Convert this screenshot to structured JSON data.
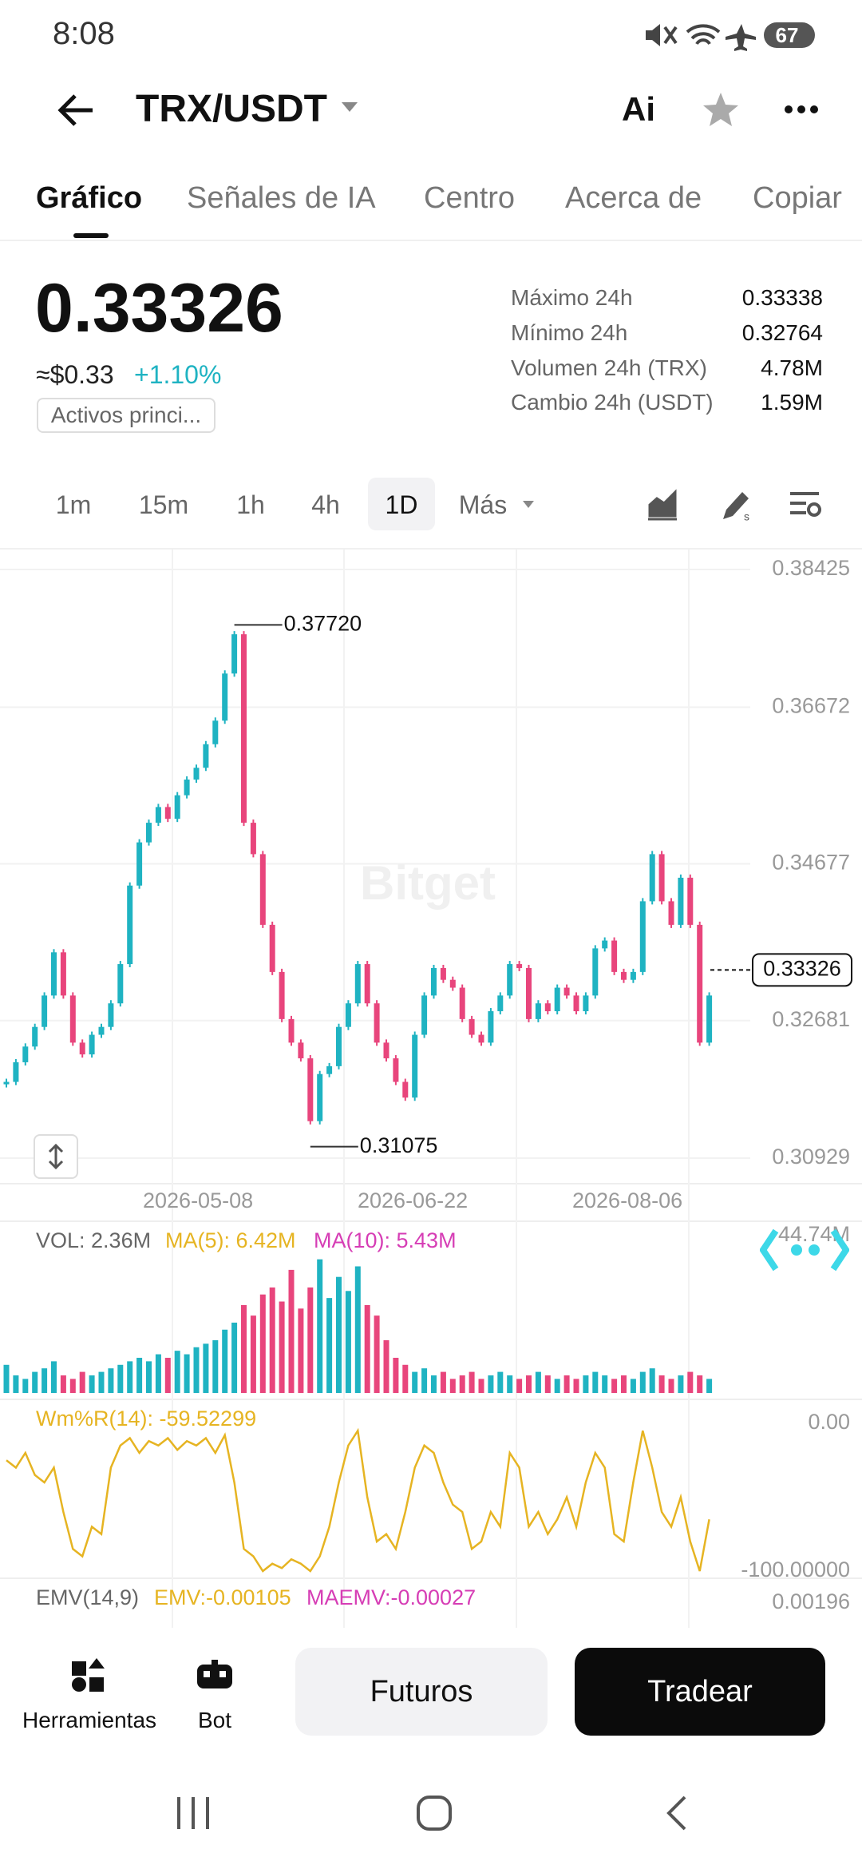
{
  "status_bar": {
    "time": "8:08",
    "battery": "67"
  },
  "header": {
    "pair": "TRX/USDT",
    "ai": "Ai"
  },
  "tabs": [
    "Gráfico",
    "Señales de IA",
    "Centro",
    "Acerca de",
    "Copiar"
  ],
  "ticker": {
    "price": "0.33326",
    "usd": "≈$0.33",
    "change": "+1.10%",
    "tag": "Activos princi...",
    "stats": [
      {
        "label": "Máximo 24h",
        "value": "0.33338"
      },
      {
        "label": "Mínimo 24h",
        "value": "0.32764"
      },
      {
        "label": "Volumen 24h (TRX)",
        "value": "4.78M"
      },
      {
        "label": "Cambio 24h (USDT)",
        "value": "1.59M"
      }
    ]
  },
  "intervals": [
    "1m",
    "15m",
    "1h",
    "4h",
    "1D",
    "Más"
  ],
  "chart_data": {
    "type": "candlestick",
    "up_color": "#1fb3c2",
    "down_color": "#e8457c",
    "grid": true,
    "ylim": [
      0.30929,
      0.38425
    ],
    "yticks": [
      0.38425,
      0.36672,
      0.34677,
      0.32681,
      0.30929
    ],
    "x_labels": [
      "2026-05-08",
      "2026-06-22",
      "2026-08-06"
    ],
    "closes": [
      0.319,
      0.3215,
      0.3235,
      0.326,
      0.33,
      0.3355,
      0.33,
      0.324,
      0.3225,
      0.325,
      0.326,
      0.329,
      0.334,
      0.344,
      0.3495,
      0.352,
      0.354,
      0.3525,
      0.3555,
      0.3575,
      0.359,
      0.362,
      0.365,
      0.371,
      0.376,
      0.352,
      0.348,
      0.339,
      0.333,
      0.327,
      0.324,
      0.322,
      0.314,
      0.32,
      0.321,
      0.326,
      0.329,
      0.334,
      0.329,
      0.324,
      0.322,
      0.319,
      0.317,
      0.325,
      0.33,
      0.3335,
      0.332,
      0.331,
      0.327,
      0.325,
      0.324,
      0.328,
      0.33,
      0.334,
      0.3335,
      0.327,
      0.329,
      0.328,
      0.331,
      0.33,
      0.328,
      0.33,
      0.336,
      0.337,
      0.333,
      0.332,
      0.333,
      0.342,
      0.348,
      0.342,
      0.339,
      0.345,
      0.339,
      0.324,
      0.33
    ],
    "high": {
      "value": 0.3772,
      "label": "0.37720"
    },
    "low": {
      "value": 0.31075,
      "label": "0.31075"
    },
    "last": {
      "value": 0.33326,
      "label": "0.33326"
    },
    "watermark": "Bitget",
    "volume": {
      "label": "VOL: 2.36M",
      "ma5": "MA(5): 6.42M",
      "ma10": "MA(10): 5.43M",
      "ylim": [
        0,
        44.74
      ],
      "yticks": [
        {
          "value": 44.74,
          "label": "44.74M"
        }
      ],
      "values": [
        8,
        5,
        4,
        6,
        7,
        9,
        5,
        4,
        6,
        5,
        6,
        7,
        8,
        9,
        10,
        9,
        11,
        10,
        12,
        11,
        13,
        14,
        15,
        18,
        20,
        25,
        22,
        28,
        30,
        26,
        35,
        24,
        30,
        38,
        27,
        33,
        29,
        36,
        25,
        22,
        15,
        10,
        8,
        6,
        7,
        5,
        6,
        4,
        5,
        6,
        4,
        5,
        6,
        5,
        4,
        5,
        6,
        5,
        4,
        5,
        4,
        5,
        6,
        5,
        4,
        5,
        4,
        6,
        7,
        5,
        4,
        5,
        6,
        5,
        4
      ]
    },
    "wr": {
      "label": "Wm%R(14): -59.52299",
      "ylim": [
        -100,
        0
      ],
      "yticks": [
        {
          "value": 0,
          "label": "0.00"
        },
        {
          "value": -100,
          "label": "-100.00000"
        }
      ],
      "color": "#e6b422",
      "values": [
        -25,
        -30,
        -20,
        -35,
        -40,
        -30,
        -60,
        -85,
        -90,
        -70,
        -75,
        -30,
        -15,
        -10,
        -20,
        -12,
        -15,
        -10,
        -18,
        -12,
        -15,
        -10,
        -20,
        -8,
        -40,
        -85,
        -90,
        -100,
        -95,
        -98,
        -92,
        -95,
        -100,
        -90,
        -70,
        -40,
        -15,
        -5,
        -50,
        -80,
        -75,
        -85,
        -60,
        -30,
        -15,
        -20,
        -40,
        -55,
        -60,
        -85,
        -80,
        -60,
        -70,
        -20,
        -30,
        -70,
        -60,
        -75,
        -65,
        -50,
        -70,
        -40,
        -20,
        -30,
        -75,
        -80,
        -40,
        -5,
        -30,
        -60,
        -70,
        -50,
        -80,
        -100,
        -65
      ]
    },
    "emv": {
      "label": "EMV(14,9)",
      "emv": "EMV:-0.00105",
      "maemv": "MAEMV:-0.00027",
      "yticks": [
        {
          "value": 0.00196,
          "label": "0.00196"
        }
      ]
    }
  },
  "bottom_bar": {
    "tools": "Herramientas",
    "bot": "Bot",
    "futures": "Futuros",
    "trade": "Tradear"
  }
}
